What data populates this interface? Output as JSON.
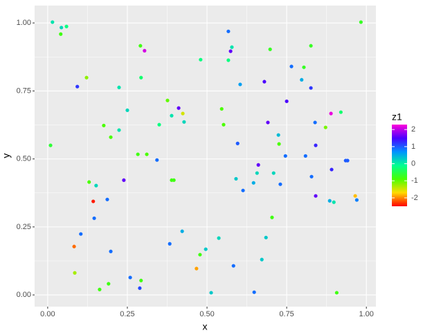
{
  "chart_data": {
    "type": "scatter",
    "x_label": "x",
    "y_label": "y",
    "colorbar_title": "z1",
    "xlim": [
      -0.041,
      1.03
    ],
    "ylim": [
      -0.043,
      1.064
    ],
    "xticks": [
      {
        "value": 0,
        "label": "0.00"
      },
      {
        "value": 0.25,
        "label": "0.25"
      },
      {
        "value": 0.5,
        "label": "0.50"
      },
      {
        "value": 0.75,
        "label": "0.75"
      },
      {
        "value": 1,
        "label": "1.00"
      }
    ],
    "yticks": [
      {
        "value": 0,
        "label": "0.00"
      },
      {
        "value": 0.25,
        "label": "0.25"
      },
      {
        "value": 0.5,
        "label": "0.50"
      },
      {
        "value": 0.75,
        "label": "0.75"
      },
      {
        "value": 1,
        "label": "1.00"
      }
    ],
    "grid": true,
    "colorscale": [
      "#FF0000",
      "#FFDB00",
      "#49FF00",
      "#00FF92",
      "#0092FF",
      "#4900FF",
      "#FF00DB"
    ],
    "colorlim": [
      -2.49,
      2.29
    ],
    "colorticks": [
      -2,
      -1,
      0,
      1,
      2
    ],
    "x": [
      0.015,
      0.043,
      0.059,
      0.041,
      0.983,
      0.567,
      0.291,
      0.304,
      0.578,
      0.574,
      0.698,
      0.826,
      0.48,
      0.567,
      0.765,
      0.804,
      0.122,
      0.293,
      0.093,
      0.224,
      0.604,
      0.68,
      0.797,
      0.826,
      0.376,
      0.75,
      0.411,
      0.424,
      0.889,
      0.92,
      0.546,
      0.25,
      0.389,
      0.428,
      0.35,
      0.176,
      0.552,
      0.224,
      0.691,
      0.724,
      0.839,
      0.872,
      0.198,
      0.596,
      0.726,
      0.841,
      0.009,
      0.283,
      0.311,
      0.343,
      0.746,
      0.809,
      0.935,
      0.941,
      0.661,
      0.891,
      0.239,
      0.389,
      0.396,
      0.591,
      0.657,
      0.709,
      0.13,
      0.152,
      0.646,
      0.73,
      0.828,
      0.613,
      0.143,
      0.187,
      0.841,
      0.885,
      0.898,
      0.965,
      0.97,
      0.146,
      0.704,
      0.083,
      0.104,
      0.422,
      0.537,
      0.685,
      0.383,
      0.198,
      0.496,
      0.478,
      0.672,
      0.583,
      0.467,
      0.085,
      0.259,
      0.293,
      0.191,
      0.163,
      0.289,
      0.513,
      0.648,
      0.907
    ],
    "y": [
      1.003,
      0.983,
      0.987,
      0.959,
      1.003,
      0.969,
      0.916,
      0.898,
      0.911,
      0.896,
      0.903,
      0.916,
      0.865,
      0.863,
      0.84,
      0.837,
      0.799,
      0.799,
      0.766,
      0.763,
      0.774,
      0.784,
      0.791,
      0.761,
      0.715,
      0.712,
      0.687,
      0.667,
      0.667,
      0.672,
      0.684,
      0.679,
      0.659,
      0.636,
      0.626,
      0.623,
      0.626,
      0.606,
      0.634,
      0.588,
      0.634,
      0.616,
      0.58,
      0.557,
      0.555,
      0.55,
      0.55,
      0.517,
      0.517,
      0.496,
      0.511,
      0.511,
      0.494,
      0.494,
      0.478,
      0.461,
      0.422,
      0.422,
      0.422,
      0.427,
      0.448,
      0.448,
      0.415,
      0.402,
      0.412,
      0.407,
      0.435,
      0.384,
      0.344,
      0.351,
      0.364,
      0.346,
      0.341,
      0.364,
      0.349,
      0.282,
      0.285,
      0.178,
      0.224,
      0.234,
      0.209,
      0.211,
      0.188,
      0.16,
      0.168,
      0.148,
      0.13,
      0.107,
      0.097,
      0.081,
      0.064,
      0.053,
      0.041,
      0.02,
      0.025,
      0.008,
      0.01,
      0.008
    ],
    "z1": [
      0.1,
      0.2,
      -0.2,
      -0.8,
      -0.7,
      0.9,
      -0.8,
      2.1,
      0.1,
      1.6,
      -0.7,
      -0.7,
      -0.2,
      -0.2,
      0.9,
      -0.7,
      -1.2,
      -0.3,
      1.2,
      0.1,
      0.6,
      1.5,
      0.5,
      1.2,
      -1.0,
      1.5,
      1.6,
      -1.5,
      2.2,
      -0.3,
      -0.9,
      0.2,
      0.1,
      0.2,
      -0.2,
      -0.9,
      -0.9,
      0.1,
      1.6,
      0.4,
      0.9,
      -1.1,
      -0.9,
      1.0,
      -0.9,
      1.3,
      -0.6,
      -0.8,
      -0.9,
      0.9,
      0.9,
      0.9,
      1.0,
      1.0,
      1.6,
      1.3,
      1.6,
      -0.8,
      -0.8,
      0.3,
      0.2,
      0.2,
      -0.9,
      0.2,
      0.5,
      0.9,
      0.9,
      0.9,
      -2.4,
      0.9,
      1.6,
      0.5,
      0.1,
      -1.8,
      0.8,
      0.9,
      -0.8,
      -2.1,
      0.9,
      0.5,
      0.2,
      0.3,
      0.9,
      0.9,
      0.3,
      -0.8,
      0.3,
      0.9,
      -1.9,
      -1.3,
      0.9,
      -0.8,
      -0.8,
      -0.8,
      1.1,
      0.3,
      0.9,
      -0.8
    ]
  }
}
